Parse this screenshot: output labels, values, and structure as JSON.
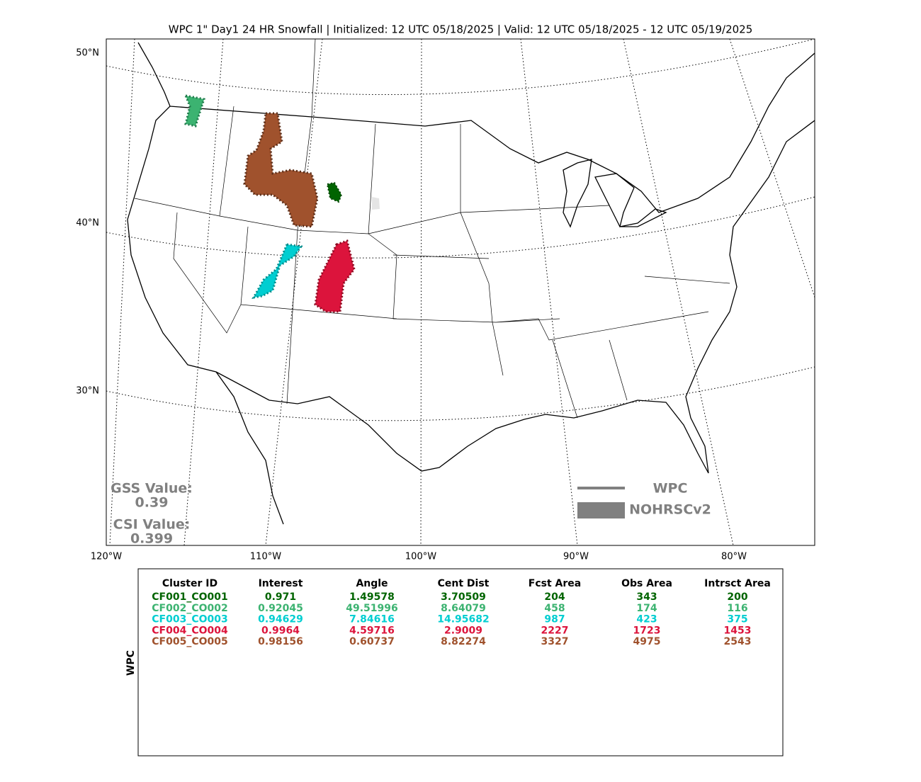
{
  "header": {
    "title": "WPC 1\" Day1 24 HR Snowfall | Initialized: 12 UTC 05/18/2025 | Valid: 12 UTC 05/18/2025 - 12 UTC 05/19/2025"
  },
  "map": {
    "lat_labels": [
      "50°N",
      "40°N",
      "30°N"
    ],
    "lon_labels": [
      "120°W",
      "110°W",
      "100°W",
      "90°W",
      "80°W"
    ],
    "scores": {
      "gss_label": "GSS Value:",
      "gss_value": "0.39",
      "csi_label": "CSI Value:",
      "csi_value": "0.399"
    },
    "legend": {
      "forecast": "WPC",
      "observed": "NOHRSCv2"
    }
  },
  "table": {
    "side_label": "WPC",
    "headers": [
      "Cluster ID",
      "Interest",
      "Angle",
      "Cent Dist",
      "Fcst Area",
      "Obs Area",
      "Intrsct Area"
    ],
    "rows": [
      {
        "color": "#006400",
        "cells": [
          "CF001_CO001",
          "0.971",
          "1.49578",
          "3.70509",
          "204",
          "343",
          "200"
        ]
      },
      {
        "color": "#3cb371",
        "cells": [
          "CF002_CO002",
          "0.92045",
          "49.51996",
          "8.64079",
          "458",
          "174",
          "116"
        ]
      },
      {
        "color": "#00ced1",
        "cells": [
          "CF003_CO003",
          "0.94629",
          "7.84616",
          "14.95682",
          "987",
          "423",
          "375"
        ]
      },
      {
        "color": "#dc143c",
        "cells": [
          "CF004_CO004",
          "0.9964",
          "4.59716",
          "2.9009",
          "2227",
          "1723",
          "1453"
        ]
      },
      {
        "color": "#a0522d",
        "cells": [
          "CF005_CO005",
          "0.98156",
          "0.60737",
          "8.82274",
          "3327",
          "4975",
          "2543"
        ]
      }
    ]
  }
}
